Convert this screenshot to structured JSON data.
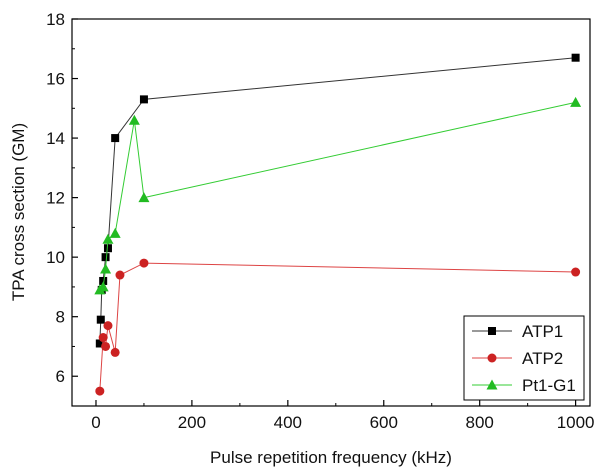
{
  "chart_data": {
    "type": "scatter",
    "xlabel": "Pulse repetition frequency (kHz)",
    "ylabel": "TPA cross section (GM)",
    "xlim": [
      -50,
      1030
    ],
    "ylim": [
      5,
      18
    ],
    "xticks": [
      0,
      200,
      400,
      600,
      800,
      1000
    ],
    "yticks": [
      6,
      8,
      10,
      12,
      14,
      16,
      18
    ],
    "grid": false,
    "legend_position": "bottom-right",
    "series": [
      {
        "name": "ATP1",
        "marker": "square",
        "color": "#000000",
        "line_color": "#333333",
        "points": [
          [
            8,
            7.1
          ],
          [
            10,
            7.9
          ],
          [
            12,
            8.9
          ],
          [
            15,
            9.2
          ],
          [
            20,
            10.0
          ],
          [
            25,
            10.3
          ],
          [
            40,
            14.0
          ],
          [
            100,
            15.3
          ],
          [
            1000,
            16.7
          ]
        ]
      },
      {
        "name": "ATP2",
        "marker": "circle",
        "color": "#cc2222",
        "line_color": "#dd4444",
        "points": [
          [
            8,
            5.5
          ],
          [
            15,
            7.3
          ],
          [
            20,
            7.0
          ],
          [
            25,
            7.7
          ],
          [
            40,
            6.8
          ],
          [
            50,
            9.4
          ],
          [
            100,
            9.8
          ],
          [
            1000,
            9.5
          ]
        ]
      },
      {
        "name": "Pt1-G1",
        "marker": "triangle",
        "color": "#22bb22",
        "line_color": "#33cc33",
        "points": [
          [
            8,
            8.9
          ],
          [
            15,
            9.0
          ],
          [
            20,
            9.6
          ],
          [
            25,
            10.6
          ],
          [
            40,
            10.8
          ],
          [
            80,
            14.6
          ],
          [
            100,
            12.0
          ],
          [
            1000,
            15.2
          ]
        ]
      }
    ]
  }
}
